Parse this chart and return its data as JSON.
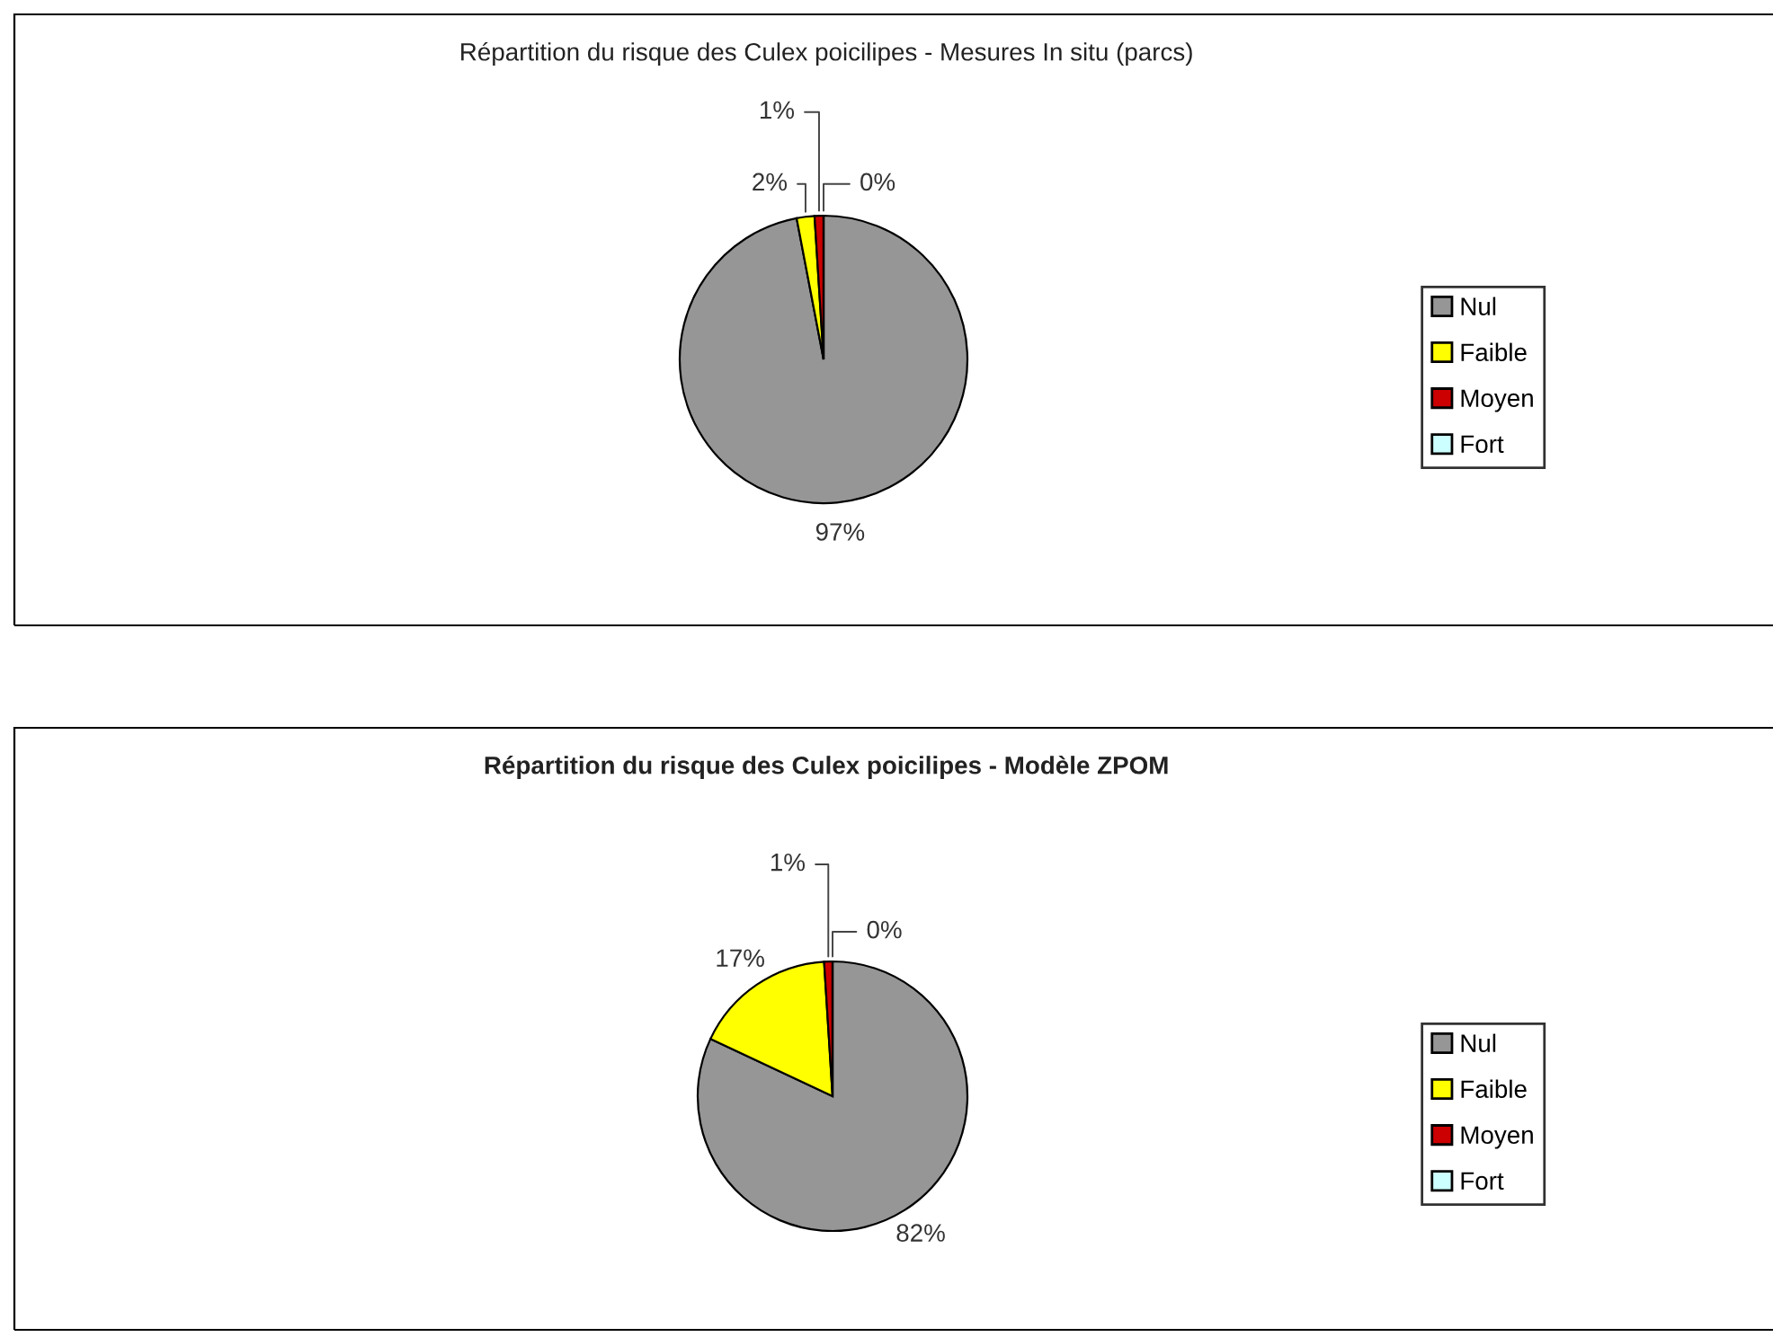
{
  "chart_data": [
    {
      "type": "pie",
      "title": "Répartition du risque des Culex poicilipes - Mesures In situ (parcs)",
      "categories": [
        "Nul",
        "Faible",
        "Moyen",
        "Fort"
      ],
      "values": [
        97,
        2,
        1,
        0
      ],
      "colors": [
        "#969696",
        "#ffff00",
        "#cc0000",
        "#ccffff"
      ],
      "value_labels": [
        "97%",
        "2%",
        "1%",
        "0%"
      ],
      "legend": "right"
    },
    {
      "type": "pie",
      "title": "Répartition du risque des Culex poicilipes - Modèle ZPOM",
      "categories": [
        "Nul",
        "Faible",
        "Moyen",
        "Fort"
      ],
      "values": [
        82,
        17,
        1,
        0
      ],
      "colors": [
        "#969696",
        "#ffff00",
        "#cc0000",
        "#ccffff"
      ],
      "value_labels": [
        "82%",
        "17%",
        "1%",
        "0%"
      ],
      "legend": "right"
    }
  ]
}
